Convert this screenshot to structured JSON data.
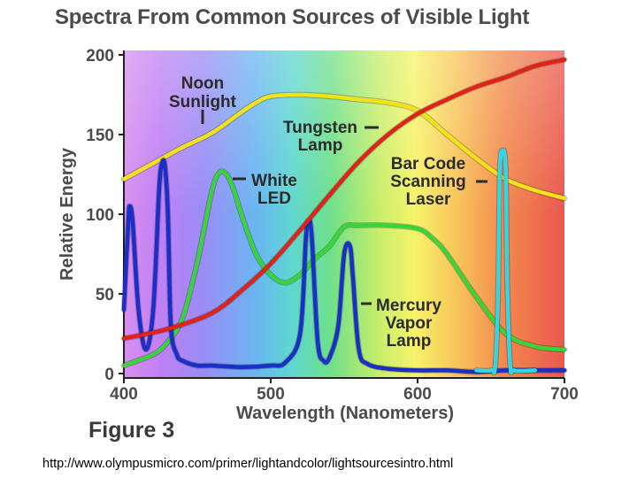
{
  "header": {
    "title": "Spectra From Common Sources of Visible Light"
  },
  "figure_label": "Figure 3",
  "source_url": "http://www.olympusmicro.com/primer/lightandcolor/lightsourcesintro.html",
  "chart_data": {
    "type": "line",
    "title": "Spectra From Common Sources of Visible Light",
    "xlabel": "Wavelength (Nanometers)",
    "ylabel": "Relative Energy",
    "xlim": [
      400,
      700
    ],
    "ylim": [
      0,
      200
    ],
    "x_ticks": [
      "400",
      "500",
      "600",
      "700"
    ],
    "y_ticks": [
      "0",
      "50",
      "100",
      "150",
      "200"
    ],
    "grid": false,
    "background": "visible spectrum gradient (violet to red)",
    "series": [
      {
        "name": "Noon Sunlight",
        "label_lines": [
          "Noon",
          "Sunlight"
        ],
        "color": "#f2e21a",
        "x": [
          400,
          420,
          440,
          460,
          480,
          490,
          500,
          520,
          540,
          560,
          580,
          600,
          620,
          640,
          660,
          680,
          700
        ],
        "y": [
          122,
          132,
          142,
          151,
          164,
          170,
          174,
          175,
          174,
          172,
          170,
          165,
          150,
          135,
          122,
          115,
          110
        ]
      },
      {
        "name": "Tungsten Lamp",
        "label_lines": [
          "Tungsten",
          "Lamp"
        ],
        "color": "#e0231a",
        "x": [
          400,
          430,
          460,
          480,
          500,
          520,
          540,
          560,
          580,
          600,
          620,
          640,
          660,
          680,
          700
        ],
        "y": [
          22,
          28,
          38,
          52,
          69,
          90,
          112,
          133,
          150,
          163,
          172,
          180,
          186,
          193,
          197
        ]
      },
      {
        "name": "White LED",
        "label_lines": [
          "White",
          "LED"
        ],
        "color": "#3ad43a",
        "x": [
          400,
          420,
          430,
          440,
          450,
          460,
          465,
          470,
          475,
          480,
          490,
          500,
          510,
          520,
          530,
          540,
          550,
          560,
          580,
          600,
          610,
          620,
          640,
          660,
          680,
          700
        ],
        "y": [
          5,
          12,
          20,
          35,
          70,
          115,
          126,
          125,
          115,
          100,
          75,
          62,
          57,
          62,
          72,
          80,
          92,
          93,
          93,
          91,
          85,
          75,
          48,
          25,
          17,
          15
        ]
      },
      {
        "name": "Mercury Vapor Lamp",
        "label_lines": [
          "Mercury",
          "Vapor",
          "Lamp"
        ],
        "color": "#1a2ec8",
        "x": [
          400,
          403,
          404,
          406,
          410,
          415,
          420,
          424,
          426,
          428,
          430,
          432,
          436,
          440,
          450,
          460,
          480,
          500,
          510,
          520,
          524,
          526,
          528,
          532,
          536,
          540,
          546,
          550,
          554,
          556,
          560,
          566,
          580,
          600,
          620,
          640,
          660,
          680,
          700
        ],
        "y": [
          40,
          95,
          105,
          95,
          40,
          15,
          40,
          115,
          132,
          130,
          100,
          30,
          12,
          8,
          5,
          5,
          4,
          5,
          7,
          25,
          85,
          96,
          85,
          20,
          8,
          10,
          30,
          75,
          80,
          60,
          15,
          6,
          3,
          2,
          2,
          1,
          2,
          2,
          2
        ]
      },
      {
        "name": "Bar Code Scanning Laser",
        "label_lines": [
          "Bar Code",
          "Scanning",
          "Laser"
        ],
        "color": "#33d6e8",
        "x": [
          640,
          650,
          653,
          655,
          656,
          658,
          660,
          661,
          663,
          666,
          680
        ],
        "y": [
          2,
          2,
          6,
          60,
          128,
          140,
          128,
          60,
          6,
          2,
          2
        ]
      }
    ]
  }
}
